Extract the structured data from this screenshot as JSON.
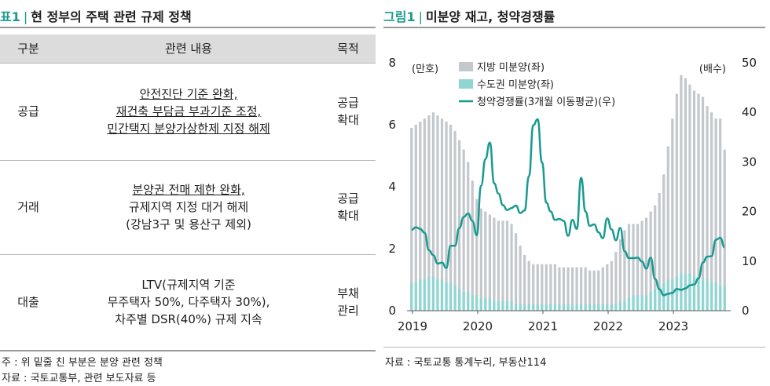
{
  "table": {
    "title_num": "표1",
    "title_sep": "|",
    "title_text": "현 정부의 주택 관련 규제 정책",
    "headers": [
      "구분",
      "관련 내용",
      "목적"
    ],
    "rows": [
      {
        "category": "공급",
        "content": [
          "안전진단 기준 완화,",
          "재건축 부담금 부과기준 조정,",
          "민간택지 분양가상한제 지정 해제"
        ],
        "underlined": [
          true,
          true,
          true
        ],
        "purpose": [
          "공급",
          "확대"
        ]
      },
      {
        "category": "거래",
        "content": [
          "분양권 전매 제한 완화,",
          "규제지역 지정 대거 해제",
          "(강남3구 및 용산구 제외)"
        ],
        "underlined": [
          true,
          false,
          false
        ],
        "purpose": [
          "공급",
          "확대"
        ]
      },
      {
        "category": "대출",
        "content": [
          "LTV(규제지역 기준",
          "무주택자 50%, 다주택자 30%),",
          "차주별 DSR(40%) 규제 지속"
        ],
        "underlined": [
          false,
          false,
          false
        ],
        "purpose": [
          "부채",
          "관리"
        ]
      }
    ],
    "note": "주 : 위 밑줄 친 부분은 분양 관련 정책",
    "source": "자료 : 국토교통부, 관련 보도자료 등"
  },
  "figure": {
    "title_num": "그림1",
    "title_sep": "|",
    "title_text": "미분양 재고, 청약경쟁률",
    "source": "자료 : 국토교통 통계누리, 부동산114"
  },
  "chart_data": {
    "type": "bar+line",
    "left_unit": "(만호)",
    "right_unit": "(배수)",
    "left_ylim": [
      0,
      8
    ],
    "left_ticks": [
      "0",
      "2",
      "4",
      "6",
      "8"
    ],
    "right_ylim": [
      0,
      50
    ],
    "right_ticks": [
      "0",
      "10",
      "20",
      "30",
      "40",
      "50"
    ],
    "x_ticks": [
      "2019",
      "2020",
      "2021",
      "2022",
      "2023"
    ],
    "legend": [
      "지방 미분양(좌)",
      "수도권 미분양(좌)",
      "청약경쟁률(3개월 이동평균)(우)"
    ],
    "colors": {
      "local": "#c3c8cc",
      "capital": "#8fd6d3",
      "line": "#199a90"
    },
    "series": [
      {
        "name": "지방 미분양(좌)",
        "values": [
          5.9,
          6.0,
          6.1,
          6.2,
          6.3,
          6.4,
          6.3,
          6.2,
          6.1,
          6.0,
          5.8,
          5.5,
          5.2,
          4.8,
          4.2,
          3.6,
          3.3,
          3.2,
          3.1,
          3.0,
          2.9,
          2.9,
          2.9,
          2.8,
          2.5,
          2.1,
          1.8,
          1.6,
          1.5,
          1.5,
          1.5,
          1.5,
          1.5,
          1.5,
          1.4,
          1.4,
          1.4,
          1.4,
          1.4,
          1.4,
          1.4,
          1.3,
          1.3,
          1.3,
          1.4,
          1.5,
          1.6,
          1.9,
          2.3,
          2.6,
          2.8,
          2.8,
          2.8,
          2.9,
          3.0,
          3.2,
          3.4,
          3.8,
          4.4,
          5.3,
          6.2,
          7.0,
          7.6,
          7.5,
          7.3,
          7.1,
          7.0,
          6.9,
          6.6,
          6.4,
          6.2,
          6.2,
          5.2
        ]
      },
      {
        "name": "수도권 미분양(좌)",
        "values": [
          0.9,
          0.9,
          1.0,
          1.0,
          1.1,
          1.1,
          1.0,
          1.0,
          0.9,
          0.9,
          0.8,
          0.7,
          0.6,
          0.6,
          0.5,
          0.5,
          0.4,
          0.4,
          0.4,
          0.3,
          0.3,
          0.3,
          0.3,
          0.3,
          0.2,
          0.2,
          0.2,
          0.2,
          0.2,
          0.2,
          0.2,
          0.2,
          0.2,
          0.2,
          0.2,
          0.2,
          0.2,
          0.2,
          0.2,
          0.2,
          0.2,
          0.2,
          0.2,
          0.2,
          0.2,
          0.2,
          0.2,
          0.2,
          0.3,
          0.3,
          0.4,
          0.5,
          0.5,
          0.5,
          0.5,
          0.6,
          0.7,
          0.8,
          0.9,
          1.0,
          1.0,
          1.1,
          1.2,
          1.2,
          1.2,
          1.1,
          1.1,
          1.0,
          1.0,
          0.9,
          0.9,
          0.8,
          0.8
        ]
      },
      {
        "name": "청약경쟁률(3개월 이동평균)(우)",
        "values": [
          16.3,
          16.8,
          16.5,
          15.7,
          12.2,
          11.2,
          9.5,
          9.7,
          8.6,
          13.1,
          13.1,
          16.7,
          18.9,
          19.6,
          18.1,
          15.2,
          25.2,
          30.6,
          33.9,
          25.7,
          23.6,
          21.3,
          20.3,
          20.7,
          21.2,
          19.7,
          20.2,
          27.1,
          37.4,
          38.6,
          29.9,
          21.8,
          20.0,
          18.3,
          18.5,
          18.1,
          15.1,
          18.3,
          16.5,
          26.8,
          20.0,
          17.1,
          17.4,
          15.8,
          14.6,
          18.6,
          16.4,
          14.2,
          16.7,
          12.0,
          10.6,
          10.6,
          10.7,
          9.9,
          8.5,
          10.7,
          6.4,
          4.3,
          3.1,
          3.4,
          3.6,
          4.4,
          4.2,
          4.5,
          5.1,
          5.3,
          6.5,
          9.7,
          10.9,
          11.0,
          14.3,
          14.7,
          12.8
        ]
      }
    ]
  }
}
